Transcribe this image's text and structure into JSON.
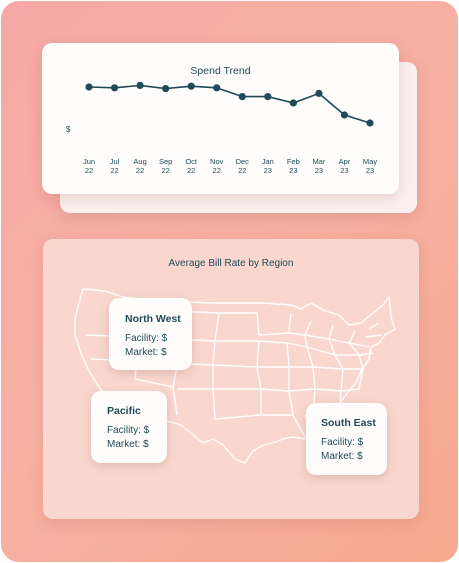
{
  "spend_trend": {
    "title": "Spend Trend",
    "y_unit": "$",
    "months": [
      {
        "m": "Jun",
        "y": "22"
      },
      {
        "m": "Jul",
        "y": "22"
      },
      {
        "m": "Aug",
        "y": "22"
      },
      {
        "m": "Sep",
        "y": "22"
      },
      {
        "m": "Oct",
        "y": "22"
      },
      {
        "m": "Nov",
        "y": "22"
      },
      {
        "m": "Dec",
        "y": "22"
      },
      {
        "m": "Jan",
        "y": "23"
      },
      {
        "m": "Feb",
        "y": "23"
      },
      {
        "m": "Mar",
        "y": "23"
      },
      {
        "m": "Apr",
        "y": "23"
      },
      {
        "m": "May",
        "y": "23"
      }
    ]
  },
  "chart_data": {
    "type": "line",
    "title": "Spend Trend",
    "categories": [
      "Jun 22",
      "Jul 22",
      "Aug 22",
      "Sep 22",
      "Oct 22",
      "Nov 22",
      "Dec 22",
      "Jan 23",
      "Feb 23",
      "Mar 23",
      "Apr 23",
      "May 23"
    ],
    "values": [
      0.8,
      0.79,
      0.82,
      0.78,
      0.81,
      0.79,
      0.68,
      0.68,
      0.6,
      0.72,
      0.45,
      0.35
    ],
    "ylim": [
      0,
      1
    ],
    "ylabel": "$",
    "grid": false,
    "colors": {
      "line": "#1f4b56",
      "point": "#1f4b56"
    }
  },
  "map": {
    "title": "Average Bill Rate by Region",
    "regions": [
      {
        "name": "North West",
        "facility": "Facility: $",
        "market": "Market: $"
      },
      {
        "name": "Pacific",
        "facility": "Facility: $",
        "market": "Market: $"
      },
      {
        "name": "South East",
        "facility": "Facility: $",
        "market": "Market: $"
      }
    ]
  },
  "colors": {
    "background_gradient": [
      "#f5a9a6",
      "#f6a98f"
    ],
    "card": "#fffdfc",
    "map_card": "#f9d7cf",
    "text_dark": "#1f4b56"
  }
}
